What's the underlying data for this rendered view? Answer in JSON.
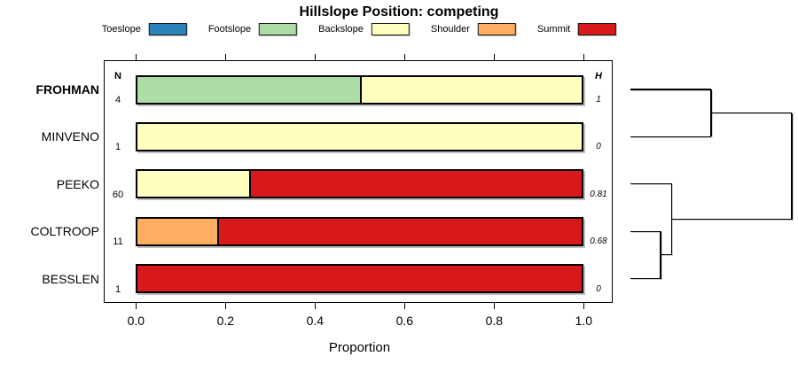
{
  "title": "Hillslope Position: competing",
  "xlabel": "Proportion",
  "columns": {
    "n_header": "N",
    "h_header": "H"
  },
  "legend": [
    {
      "label": "Toeslope",
      "color": "#2B83BA"
    },
    {
      "label": "Footslope",
      "color": "#ABDDA4"
    },
    {
      "label": "Backslope",
      "color": "#FFFFBF"
    },
    {
      "label": "Shoulder",
      "color": "#FDAE61"
    },
    {
      "label": "Summit",
      "color": "#D7191C"
    }
  ],
  "chart_data": {
    "type": "bar",
    "orientation": "horizontal-stacked",
    "title": "Hillslope Position: competing",
    "xlabel": "Proportion",
    "xlim": [
      0,
      1
    ],
    "x_ticks": [
      0.0,
      0.2,
      0.4,
      0.6,
      0.8,
      1.0
    ],
    "x_tick_labels": [
      "0.0",
      "0.2",
      "0.4",
      "0.6",
      "0.8",
      "1.0"
    ],
    "categories": [
      "Toeslope",
      "Footslope",
      "Backslope",
      "Shoulder",
      "Summit"
    ],
    "colors": {
      "Toeslope": "#2B83BA",
      "Footslope": "#ABDDA4",
      "Backslope": "#FFFFBF",
      "Shoulder": "#FDAE61",
      "Summit": "#D7191C"
    },
    "rows": [
      {
        "label": "FROHMAN",
        "bold": true,
        "n": "4",
        "h": "1",
        "segments": [
          {
            "category": "Footslope",
            "value": 0.5
          },
          {
            "category": "Backslope",
            "value": 0.5
          }
        ]
      },
      {
        "label": "MINVENO",
        "bold": false,
        "n": "1",
        "h": "0",
        "segments": [
          {
            "category": "Backslope",
            "value": 1.0
          }
        ]
      },
      {
        "label": "PEEKO",
        "bold": false,
        "n": "60",
        "h": "0.81",
        "segments": [
          {
            "category": "Backslope",
            "value": 0.25
          },
          {
            "category": "Summit",
            "value": 0.75
          }
        ]
      },
      {
        "label": "COLTROOP",
        "bold": false,
        "n": "11",
        "h": "0.68",
        "segments": [
          {
            "category": "Shoulder",
            "value": 0.18
          },
          {
            "category": "Summit",
            "value": 0.82
          }
        ]
      },
      {
        "label": "BESSLEN",
        "bold": false,
        "n": "1",
        "h": "0",
        "segments": [
          {
            "category": "Summit",
            "value": 1.0
          }
        ]
      }
    ],
    "dendrogram": {
      "root": {
        "height": 1.0,
        "children": [
          {
            "height": 0.5,
            "children": [
              {
                "leaf": "FROHMAN",
                "row": 0
              },
              {
                "leaf": "MINVENO",
                "row": 1
              }
            ]
          },
          {
            "height": 0.257,
            "children": [
              {
                "leaf": "PEEKO",
                "row": 2
              },
              {
                "height": 0.187,
                "children": [
                  {
                    "leaf": "COLTROOP",
                    "row": 3
                  },
                  {
                    "leaf": "BESSLEN",
                    "row": 4
                  }
                ]
              }
            ]
          }
        ]
      }
    }
  }
}
